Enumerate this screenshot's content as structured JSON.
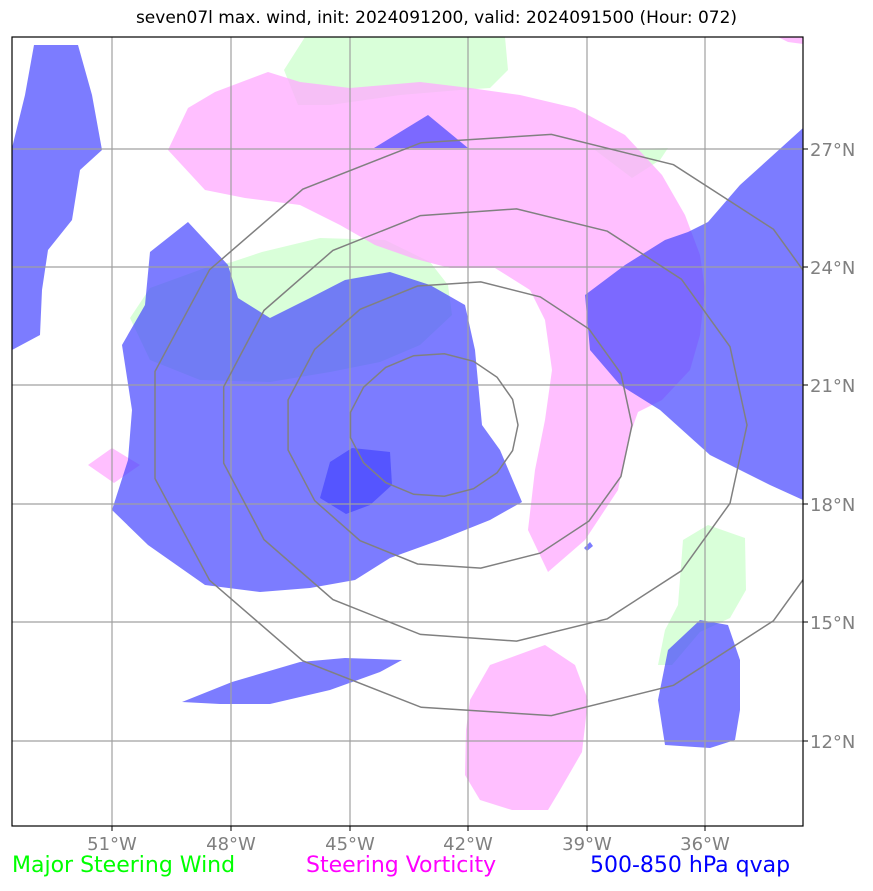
{
  "title": "seven07l max. wind, init: 2024091200, valid: 2024091500 (Hour: 072)",
  "map": {
    "lon_ticks": [
      "51°W",
      "48°W",
      "45°W",
      "42°W",
      "39°W",
      "36°W"
    ],
    "lat_ticks": [
      "27°N",
      "24°N",
      "21°N",
      "18°N",
      "15°N",
      "12°N"
    ],
    "gridline_color": "#a0a0a0",
    "range_ring_color": "#808080"
  },
  "layers": {
    "steering_wind_color": "#ccffcc",
    "vorticity_color": "#ffaaff",
    "qvap_color": "#5555ff"
  },
  "legend": {
    "green": "Major Steering Wind",
    "magenta": "Steering Vorticity",
    "blue": "500-850 hPa qvap"
  }
}
